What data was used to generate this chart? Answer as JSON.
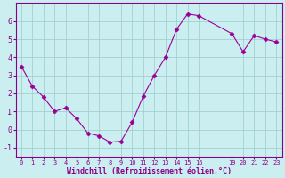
{
  "x": [
    0,
    1,
    2,
    3,
    4,
    5,
    6,
    7,
    8,
    9,
    10,
    11,
    12,
    13,
    14,
    15,
    16,
    19,
    20,
    21,
    22,
    23
  ],
  "y": [
    3.5,
    2.4,
    1.8,
    1.0,
    1.2,
    0.6,
    -0.2,
    -0.35,
    -0.7,
    -0.65,
    0.4,
    1.85,
    3.0,
    4.0,
    5.55,
    6.4,
    6.3,
    5.3,
    4.3,
    5.2,
    5.0,
    4.85
  ],
  "line_color": "#990099",
  "marker_color": "#990099",
  "bg_color": "#cbeef0",
  "grid_color": "#99cccc",
  "xlabel": "Windchill (Refroidissement éolien,°C)",
  "xlabel_color": "#880088",
  "tick_color": "#880088",
  "spine_color": "#880088",
  "ylim": [
    -1.5,
    7.0
  ],
  "xlim": [
    -0.5,
    23.5
  ],
  "yticks": [
    -1,
    0,
    1,
    2,
    3,
    4,
    5,
    6
  ],
  "xticks": [
    0,
    1,
    2,
    3,
    4,
    5,
    6,
    7,
    8,
    9,
    10,
    11,
    12,
    13,
    14,
    15,
    16,
    19,
    20,
    21,
    22,
    23
  ],
  "xtick_labels": [
    "0",
    "1",
    "2",
    "3",
    "4",
    "5",
    "6",
    "7",
    "8",
    "9",
    "10",
    "11",
    "12",
    "13",
    "14",
    "15",
    "16",
    "19",
    "20",
    "21",
    "22",
    "23"
  ],
  "font_family": "monospace",
  "tick_fontsize": 5.0,
  "xlabel_fontsize": 6.0,
  "ytick_fontsize": 6.0,
  "linewidth": 0.8,
  "markersize": 2.5
}
